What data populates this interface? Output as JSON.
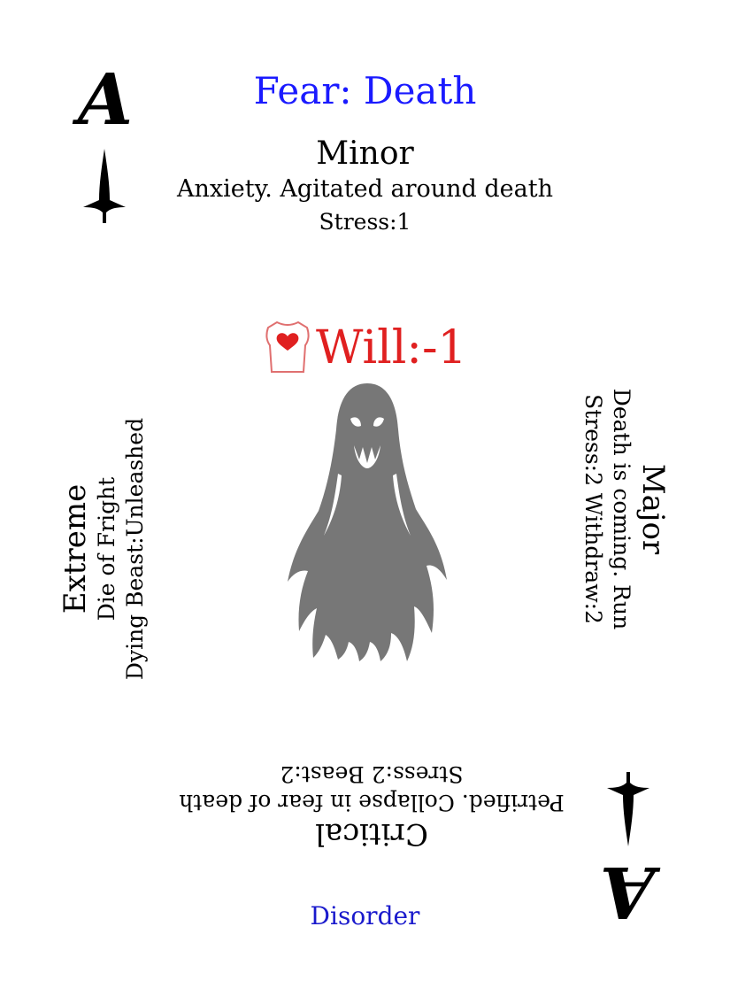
{
  "card": {
    "title": "Fear: Death",
    "rank": "A",
    "footer": "Disorder",
    "will": "Will:-1",
    "colors": {
      "title": "#1a1aff",
      "will": "#e02020",
      "footer": "#1a1acc",
      "ghost": "#777777"
    },
    "icons": {
      "suit": "spade-dagger-icon",
      "torso": "heart-torso-icon",
      "art": "ghost-icon"
    }
  },
  "minor": {
    "label": "Minor",
    "desc": "Anxiety. Agitated around death",
    "stats": "Stress:1"
  },
  "major": {
    "label": "Major",
    "desc": "Death is coming. Run",
    "stats": "Stress:2 Withdraw:2"
  },
  "critical": {
    "label": "Critical",
    "desc": "Petrified. Collapse in fear of death",
    "stats": "Stress:2 Beast:2"
  },
  "extreme": {
    "label": "Extreme",
    "desc": "Die of Fright",
    "stats": "Dying Beast:Unleashed"
  }
}
